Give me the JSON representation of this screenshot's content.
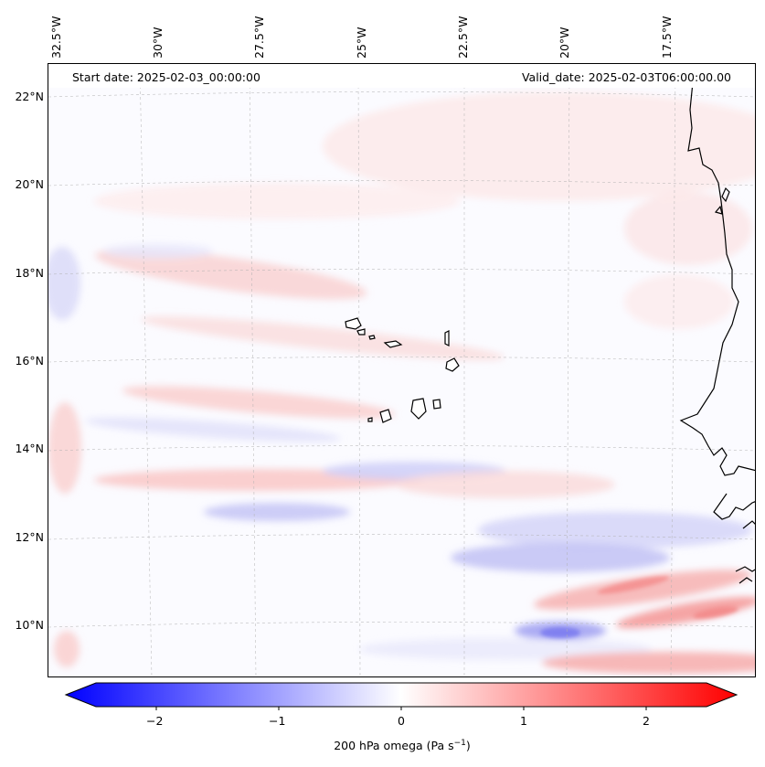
{
  "map": {
    "start_date": "Start date: 2025-02-03_00:00:00",
    "valid_date": "Valid_date: 2025-02-03T06:00:00.00",
    "longitude_labels": [
      "32.5°W",
      "30°W",
      "27.5°W",
      "25°W",
      "22.5°W",
      "20°W",
      "17.5°W"
    ],
    "latitude_labels": [
      "22°N",
      "20°N",
      "18°N",
      "16°N",
      "14°N",
      "12°N",
      "10°N"
    ],
    "colorbar": {
      "tick_labels": [
        "−2",
        "−1",
        "0",
        "1",
        "2"
      ],
      "label_prefix": "200 hPa omega (Pa s",
      "label_exponent": "−1",
      "label_suffix": ")",
      "range": [
        -2.7,
        2.7
      ],
      "colormap": "bwr",
      "negative_color": "#0000ff",
      "neutral_color": "#ffffff",
      "positive_color": "#ff0000"
    },
    "coastline_color": "#000000",
    "gridline_color": "#b0b0b0"
  }
}
